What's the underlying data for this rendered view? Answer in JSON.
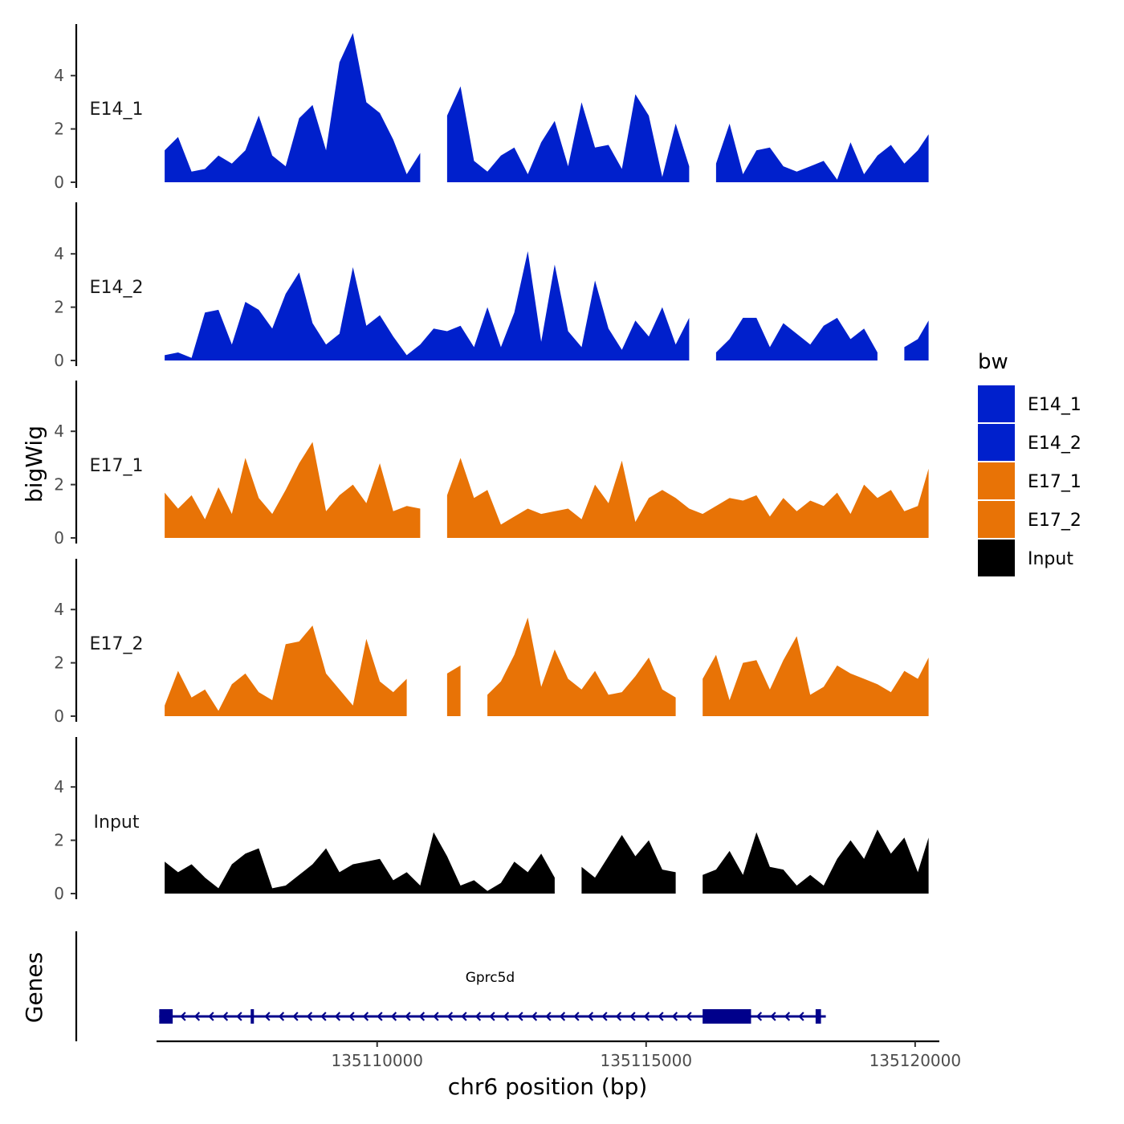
{
  "chart_data": {
    "type": "area",
    "ylabel": "bigWig",
    "gene_track_label": "Genes",
    "xlabel": "chr6 position (bp)",
    "xlim": [
      135105900,
      135120450
    ],
    "x_ticks": [
      {
        "value": 135110000,
        "label": "135110000"
      },
      {
        "value": 135115000,
        "label": "135115000"
      },
      {
        "value": 135120000,
        "label": "135120000"
      }
    ],
    "ylim": [
      0,
      5.7
    ],
    "y_ticks": [
      {
        "value": 0,
        "label": "0"
      },
      {
        "value": 2,
        "label": "2"
      },
      {
        "value": 4,
        "label": "4"
      }
    ],
    "legend": {
      "title": "bw",
      "entries": [
        {
          "label": "E14_1",
          "color": "#0020CC"
        },
        {
          "label": "E14_2",
          "color": "#0020CC"
        },
        {
          "label": "E17_1",
          "color": "#E87306"
        },
        {
          "label": "E17_2",
          "color": "#E87306"
        },
        {
          "label": "Input",
          "color": "#000000"
        }
      ]
    },
    "x": [
      135106050,
      135106300,
      135106550,
      135106800,
      135107050,
      135107300,
      135107550,
      135107800,
      135108050,
      135108300,
      135108550,
      135108800,
      135109050,
      135109300,
      135109550,
      135109800,
      135110050,
      135110300,
      135110550,
      135110800,
      135111050,
      135111300,
      135111550,
      135111800,
      135112050,
      135112300,
      135112550,
      135112800,
      135113050,
      135113300,
      135113550,
      135113800,
      135114050,
      135114300,
      135114550,
      135114800,
      135115050,
      135115300,
      135115550,
      135115800,
      135116050,
      135116300,
      135116550,
      135116800,
      135117050,
      135117300,
      135117550,
      135117800,
      135118050,
      135118300,
      135118550,
      135118800,
      135119050,
      135119300,
      135119550,
      135119800,
      135120050,
      135120250
    ],
    "series": [
      {
        "name": "E14_1",
        "color": "#0020CC",
        "values": [
          1.2,
          1.7,
          0.4,
          0.5,
          1.0,
          0.7,
          1.2,
          2.5,
          1.0,
          0.6,
          2.4,
          2.9,
          1.2,
          4.5,
          5.6,
          3.0,
          2.6,
          1.6,
          0.3,
          1.1,
          null,
          2.5,
          3.6,
          0.8,
          0.4,
          1.0,
          1.3,
          0.3,
          1.5,
          2.3,
          0.6,
          3.0,
          1.3,
          1.4,
          0.5,
          3.3,
          2.5,
          0.2,
          2.2,
          0.6,
          null,
          0.7,
          2.2,
          0.3,
          1.2,
          1.3,
          0.6,
          0.4,
          0.6,
          0.8,
          0.1,
          1.5,
          0.3,
          1.0,
          1.4,
          0.7,
          1.2,
          1.8
        ]
      },
      {
        "name": "E14_2",
        "color": "#0020CC",
        "values": [
          0.2,
          0.3,
          0.1,
          1.8,
          1.9,
          0.6,
          2.2,
          1.9,
          1.2,
          2.5,
          3.3,
          1.4,
          0.6,
          1.0,
          3.5,
          1.3,
          1.7,
          0.9,
          0.2,
          0.6,
          1.2,
          1.1,
          1.3,
          0.5,
          2.0,
          0.5,
          1.8,
          4.1,
          0.7,
          3.6,
          1.1,
          0.5,
          3.0,
          1.2,
          0.4,
          1.5,
          0.9,
          2.0,
          0.6,
          1.6,
          null,
          0.3,
          0.8,
          1.6,
          1.6,
          0.5,
          1.4,
          1.0,
          0.6,
          1.3,
          1.6,
          0.8,
          1.2,
          0.3,
          null,
          0.5,
          0.8,
          1.5
        ]
      },
      {
        "name": "E17_1",
        "color": "#E87306",
        "values": [
          1.7,
          1.1,
          1.6,
          0.7,
          1.9,
          0.9,
          3.0,
          1.5,
          0.9,
          1.8,
          2.8,
          3.6,
          1.0,
          1.6,
          2.0,
          1.3,
          2.8,
          1.0,
          1.2,
          1.1,
          null,
          1.6,
          3.0,
          1.5,
          1.8,
          0.5,
          0.8,
          1.1,
          0.9,
          1.0,
          1.1,
          0.7,
          2.0,
          1.3,
          2.9,
          0.6,
          1.5,
          1.8,
          1.5,
          1.1,
          0.9,
          1.2,
          1.5,
          1.4,
          1.6,
          0.8,
          1.5,
          1.0,
          1.4,
          1.2,
          1.7,
          0.9,
          2.0,
          1.5,
          1.8,
          1.0,
          1.2,
          2.6
        ]
      },
      {
        "name": "E17_2",
        "color": "#E87306",
        "values": [
          0.4,
          1.7,
          0.7,
          1.0,
          0.2,
          1.2,
          1.6,
          0.9,
          0.6,
          2.7,
          2.8,
          3.4,
          1.6,
          1.0,
          0.4,
          2.9,
          1.3,
          0.9,
          1.4,
          null,
          null,
          1.6,
          1.9,
          null,
          0.8,
          1.3,
          2.3,
          3.7,
          1.1,
          2.5,
          1.4,
          1.0,
          1.7,
          0.8,
          0.9,
          1.5,
          2.2,
          1.0,
          0.7,
          null,
          1.4,
          2.3,
          0.6,
          2.0,
          2.1,
          1.0,
          2.1,
          3.0,
          0.8,
          1.1,
          1.9,
          1.6,
          1.4,
          1.2,
          0.9,
          1.7,
          1.4,
          2.2
        ]
      },
      {
        "name": "Input",
        "color": "#000000",
        "values": [
          1.2,
          0.8,
          1.1,
          0.6,
          0.2,
          1.1,
          1.5,
          1.7,
          0.2,
          0.3,
          0.7,
          1.1,
          1.7,
          0.8,
          1.1,
          1.2,
          1.3,
          0.5,
          0.8,
          0.3,
          2.3,
          1.4,
          0.3,
          0.5,
          0.1,
          0.4,
          1.2,
          0.8,
          1.5,
          0.6,
          null,
          1.0,
          0.6,
          1.4,
          2.2,
          1.4,
          2.0,
          0.9,
          0.8,
          null,
          0.7,
          0.9,
          1.6,
          0.7,
          2.3,
          1.0,
          0.9,
          0.3,
          0.7,
          0.3,
          1.3,
          2.0,
          1.3,
          2.4,
          1.5,
          2.1,
          0.8,
          2.1
        ]
      }
    ],
    "gene": {
      "name": "Gprc5d",
      "strand": "-",
      "color": "#00008B",
      "start": 135105950,
      "end": 135118250,
      "exons": [
        {
          "start": 135105950,
          "end": 135106200
        },
        {
          "start": 135107650,
          "end": 135107700
        },
        {
          "start": 135116050,
          "end": 135116950
        },
        {
          "start": 135118150,
          "end": 135118250
        }
      ]
    }
  }
}
